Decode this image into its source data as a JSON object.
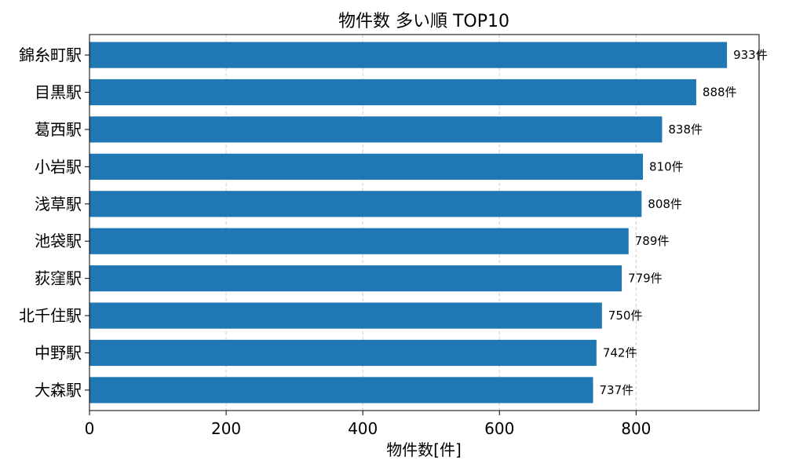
{
  "chart_data": {
    "type": "bar",
    "orientation": "horizontal",
    "title": "物件数 多い順 TOP10",
    "xlabel": "物件数[件]",
    "ylabel": "",
    "categories": [
      "錦糸町駅",
      "目黒駅",
      "葛西駅",
      "小岩駅",
      "浅草駅",
      "池袋駅",
      "荻窪駅",
      "北千住駅",
      "中野駅",
      "大森駅"
    ],
    "values": [
      933,
      888,
      838,
      810,
      808,
      789,
      779,
      750,
      742,
      737
    ],
    "data_labels": [
      "933件",
      "888件",
      "838件",
      "810件",
      "808件",
      "789件",
      "779件",
      "750件",
      "742件",
      "737件"
    ],
    "xlim": [
      0,
      980
    ],
    "xticks": [
      0,
      200,
      400,
      600,
      800
    ],
    "xtick_labels": [
      "0",
      "200",
      "400",
      "600",
      "800"
    ],
    "grid": "x, dashed",
    "bar_color": "#1f77b4"
  }
}
